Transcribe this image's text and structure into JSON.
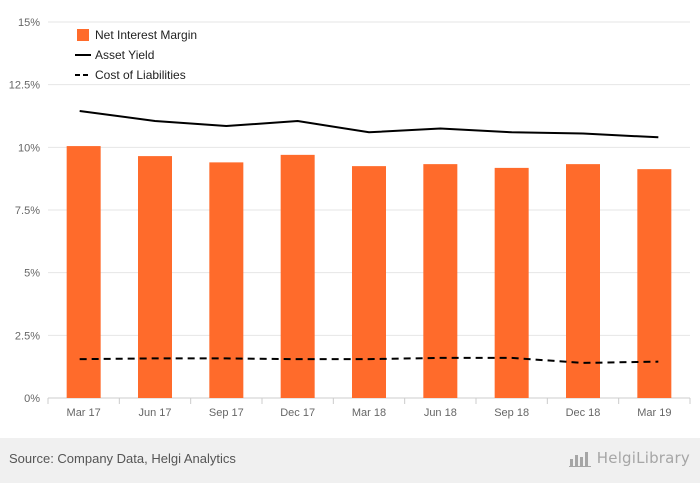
{
  "chart_data": {
    "type": "bar",
    "categories": [
      "Mar 17",
      "Jun 17",
      "Sep 17",
      "Dec 17",
      "Mar 18",
      "Jun 18",
      "Sep 18",
      "Dec 18",
      "Mar 19"
    ],
    "series": [
      {
        "name": "Net Interest Margin",
        "type": "bar",
        "color": "#ff6b2b",
        "values": [
          10.05,
          9.65,
          9.4,
          9.7,
          9.25,
          9.33,
          9.18,
          9.33,
          9.13
        ]
      },
      {
        "name": "Asset Yield",
        "type": "line",
        "style": "solid",
        "color": "#000000",
        "values": [
          11.45,
          11.05,
          10.85,
          11.05,
          10.6,
          10.75,
          10.6,
          10.55,
          10.4
        ]
      },
      {
        "name": "Cost of Liabilities",
        "type": "line",
        "style": "dashed",
        "color": "#000000",
        "values": [
          1.55,
          1.58,
          1.58,
          1.55,
          1.55,
          1.6,
          1.6,
          1.4,
          1.45
        ]
      }
    ],
    "y_ticks": [
      "0%",
      "2.5%",
      "5%",
      "7.5%",
      "10%",
      "12.5%",
      "15%"
    ],
    "ylim": [
      0,
      15
    ],
    "grid": true,
    "legend_position": "top-left"
  },
  "footer": {
    "source": "Source: Company Data, Helgi Analytics",
    "brand": "HelgiLibrary",
    "brand_icon": "bar-chart-logo-icon"
  }
}
